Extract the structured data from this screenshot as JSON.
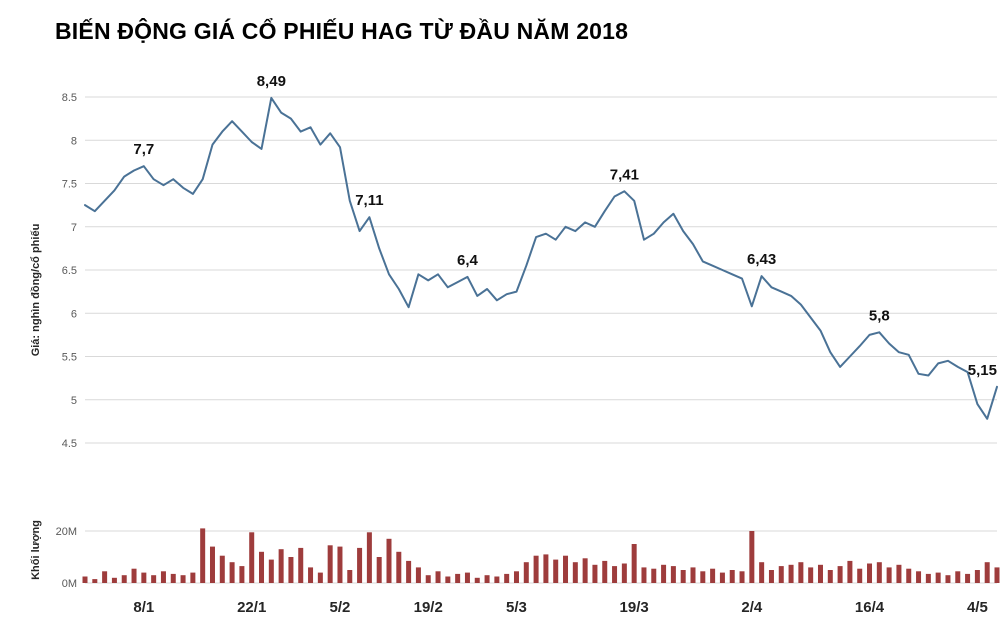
{
  "chart_data": {
    "type": "combo",
    "title": "BIẾN ĐỘNG GIÁ CỔ PHIẾU HAG TỪ ĐẦU NĂM 2018",
    "grid": true,
    "legend": false,
    "xticks": [
      {
        "index": 6,
        "label": "8/1"
      },
      {
        "index": 17,
        "label": "22/1"
      },
      {
        "index": 26,
        "label": "5/2"
      },
      {
        "index": 35,
        "label": "19/2"
      },
      {
        "index": 44,
        "label": "5/3"
      },
      {
        "index": 56,
        "label": "19/3"
      },
      {
        "index": 68,
        "label": "2/4"
      },
      {
        "index": 80,
        "label": "16/4"
      },
      {
        "index": 91,
        "label": "4/5"
      }
    ],
    "charts": [
      {
        "type": "line",
        "name": "price",
        "ylabel": "Giá: nghìn đồng/cổ phiếu",
        "ylim": [
          4.5,
          8.5
        ],
        "color": "#4a7296",
        "yticks": [
          {
            "value": 8.5,
            "label": "8.5"
          },
          {
            "value": 8,
            "label": "8"
          },
          {
            "value": 7.5,
            "label": "7.5"
          },
          {
            "value": 7,
            "label": "7"
          },
          {
            "value": 6.5,
            "label": "6.5"
          },
          {
            "value": 6,
            "label": "6"
          },
          {
            "value": 5.5,
            "label": "5.5"
          },
          {
            "value": 5,
            "label": "5"
          },
          {
            "value": 4.5,
            "label": "4.5"
          }
        ],
        "values": [
          7.25,
          7.18,
          7.3,
          7.42,
          7.58,
          7.65,
          7.7,
          7.55,
          7.48,
          7.55,
          7.45,
          7.38,
          7.55,
          7.95,
          8.1,
          8.22,
          8.1,
          7.98,
          7.9,
          8.49,
          8.32,
          8.25,
          8.1,
          8.15,
          7.95,
          8.08,
          7.92,
          7.3,
          6.95,
          7.11,
          6.75,
          6.45,
          6.28,
          6.07,
          6.45,
          6.38,
          6.45,
          6.3,
          6.36,
          6.42,
          6.2,
          6.28,
          6.15,
          6.22,
          6.25,
          6.55,
          6.88,
          6.92,
          6.85,
          7.0,
          6.95,
          7.05,
          7.0,
          7.18,
          7.35,
          7.41,
          7.3,
          6.85,
          6.92,
          7.05,
          7.15,
          6.95,
          6.8,
          6.6,
          6.55,
          6.5,
          6.45,
          6.4,
          6.08,
          6.43,
          6.3,
          6.25,
          6.2,
          6.1,
          5.95,
          5.8,
          5.55,
          5.38,
          5.5,
          5.62,
          5.75,
          5.78,
          5.65,
          5.55,
          5.52,
          5.3,
          5.28,
          5.42,
          5.45,
          5.38,
          5.32,
          4.95,
          4.78,
          5.15
        ],
        "annotations": [
          {
            "index": 6,
            "label": "7,7"
          },
          {
            "index": 19,
            "label": "8,49"
          },
          {
            "index": 29,
            "label": "7,11"
          },
          {
            "index": 39,
            "label": "6,4"
          },
          {
            "index": 55,
            "label": "7,41"
          },
          {
            "index": 69,
            "label": "6,43"
          },
          {
            "index": 81,
            "label": "5,8"
          },
          {
            "index": 93,
            "label": "5,15"
          }
        ]
      },
      {
        "type": "bar",
        "name": "volume",
        "ylabel": "Khối lượng",
        "ylim": [
          0,
          22
        ],
        "unit": "M",
        "color": "#9e3c3c",
        "yticks": [
          {
            "value": 20,
            "label": "20M"
          },
          {
            "value": 0,
            "label": "0M"
          }
        ],
        "values": [
          2.5,
          1.5,
          4.5,
          2.0,
          3.0,
          5.5,
          4.0,
          3.0,
          4.5,
          3.5,
          3.0,
          4.0,
          21.0,
          14.0,
          10.5,
          8.0,
          6.5,
          19.5,
          12.0,
          9.0,
          13.0,
          10.0,
          13.5,
          6.0,
          4.0,
          14.5,
          14.0,
          5.0,
          13.5,
          19.5,
          10.0,
          17.0,
          12.0,
          8.5,
          6.0,
          3.0,
          4.5,
          2.5,
          3.5,
          4.0,
          2.0,
          3.0,
          2.5,
          3.5,
          4.5,
          8.0,
          10.5,
          11.0,
          9.0,
          10.5,
          8.0,
          9.5,
          7.0,
          8.5,
          6.5,
          7.5,
          15.0,
          6.0,
          5.5,
          7.0,
          6.5,
          5.0,
          6.0,
          4.5,
          5.5,
          4.0,
          5.0,
          4.5,
          20.0,
          8.0,
          5.0,
          6.5,
          7.0,
          8.0,
          6.0,
          7.0,
          5.0,
          6.5,
          8.5,
          5.5,
          7.5,
          8.0,
          6.0,
          7.0,
          5.5,
          4.5,
          3.5,
          4.0,
          3.0,
          4.5,
          3.5,
          5.0,
          8.0,
          6.0
        ]
      }
    ],
    "colors": {
      "grid": "#d9d9d9",
      "line": "#4a7296",
      "bar": "#9e3c3c",
      "tick_text": "#595959",
      "xtick_text": "#262626",
      "annotation_text": "#111111"
    }
  }
}
